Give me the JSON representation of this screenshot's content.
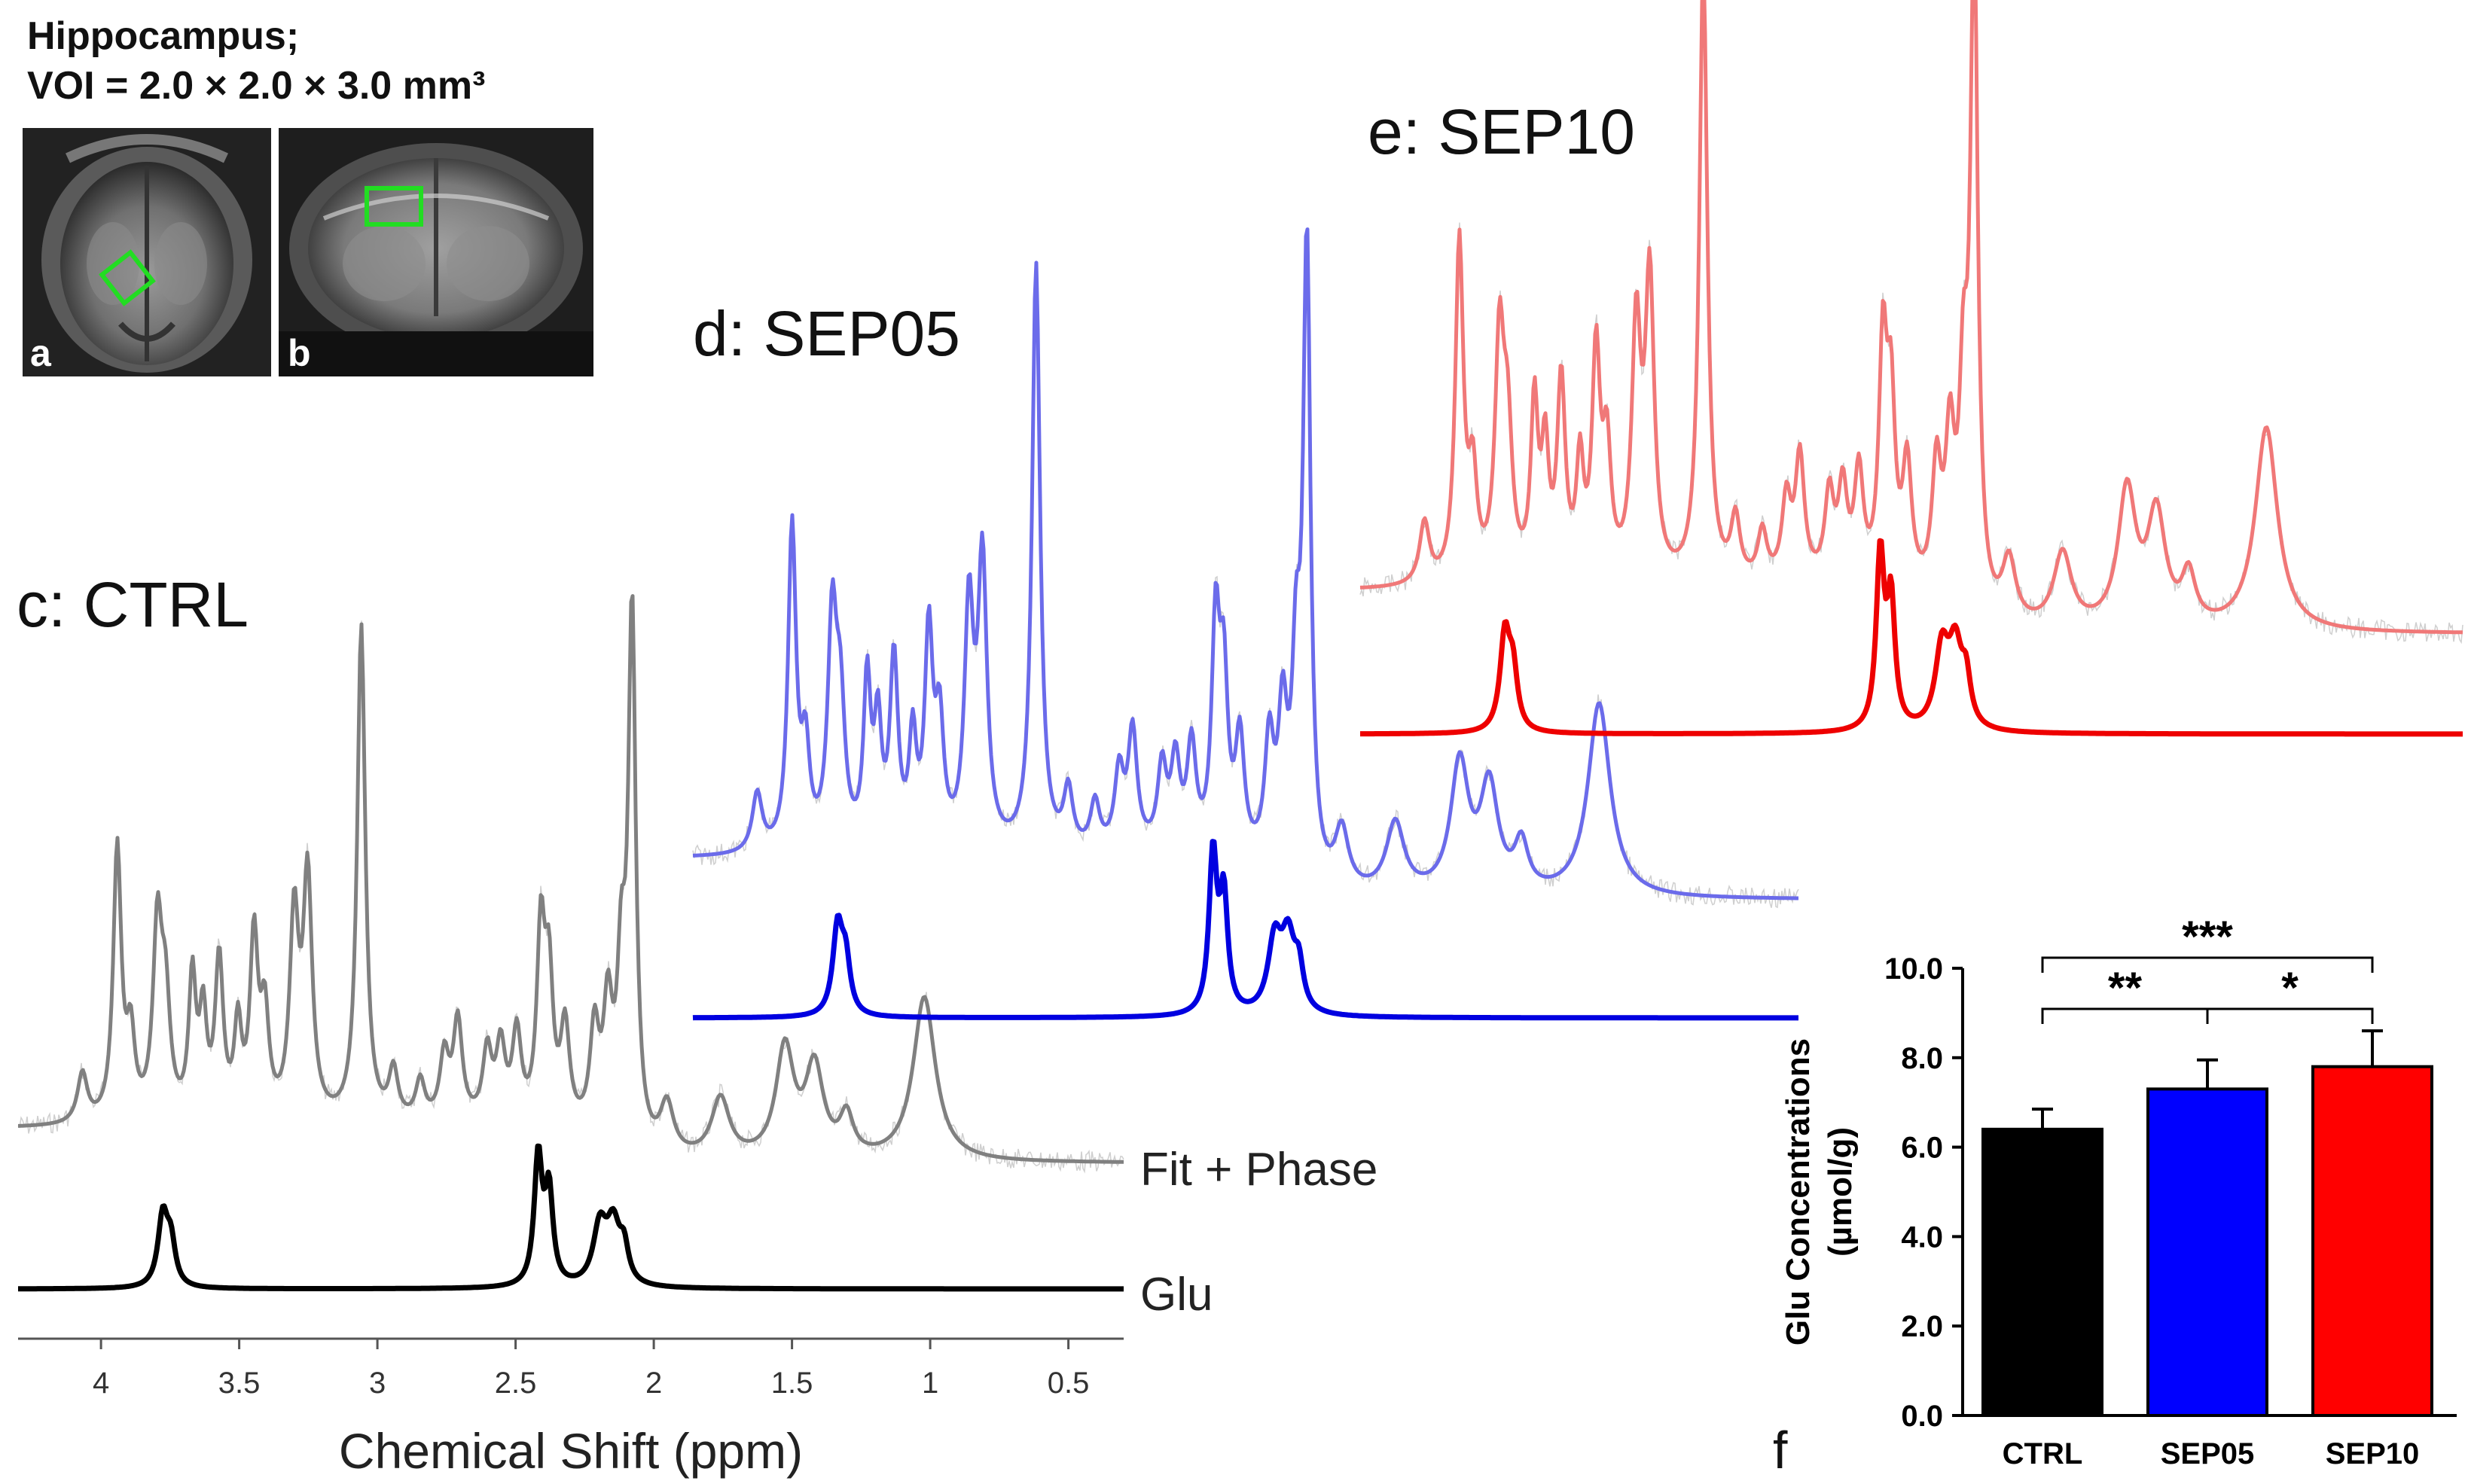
{
  "header": {
    "line1": "Hippocampus;",
    "line2": "VOI = 2.0 × 2.0 × 3.0 mm³"
  },
  "mri_panels": [
    {
      "label": "a",
      "view": "axial"
    },
    {
      "label": "b",
      "view": "coronal"
    }
  ],
  "colors": {
    "ctrl_fit": "#808080",
    "ctrl_glu": "#000000",
    "sep05_fit": "#6b6bea",
    "sep05_glu": "#0000e0",
    "sep10_fit": "#f07878",
    "sep10_glu": "#ee0000",
    "voi_box": "#22dd22",
    "noise": "#cfcfcf"
  },
  "spectra": {
    "panels": [
      {
        "key": "ctrl",
        "title": "c: CTRL"
      },
      {
        "key": "sep05",
        "title": "d: SEP05"
      },
      {
        "key": "sep10",
        "title": "e: SEP10"
      }
    ],
    "trace_labels": [
      "Fit + Phase",
      "Glu"
    ],
    "x_axis": {
      "label": "Chemical Shift (ppm)",
      "ticks": [
        "4",
        "3.5",
        "3",
        "2.5",
        "2",
        "1.5",
        "1",
        "0.5"
      ],
      "range": [
        4.3,
        0.3
      ]
    }
  },
  "chart_data": {
    "type": "bar",
    "panel_label": "f",
    "categories": [
      "CTRL",
      "SEP05",
      "SEP10"
    ],
    "values": [
      6.4,
      7.3,
      7.8
    ],
    "errors": [
      0.45,
      0.65,
      0.8
    ],
    "colors": [
      "#000000",
      "#0000ff",
      "#ff0000"
    ],
    "ylabel_line1": "Glu Concentrations",
    "ylabel_line2": "(µmol/g)",
    "ylim": [
      0,
      10
    ],
    "yticks": [
      "0.0",
      "2.0",
      "4.0",
      "6.0",
      "8.0",
      "10.0"
    ],
    "significance": [
      {
        "from": "CTRL",
        "to": "SEP10",
        "label": "***"
      },
      {
        "from": "CTRL",
        "to": "SEP05",
        "label": "**"
      },
      {
        "from": "SEP05",
        "to": "SEP10",
        "label": "*"
      }
    ]
  }
}
